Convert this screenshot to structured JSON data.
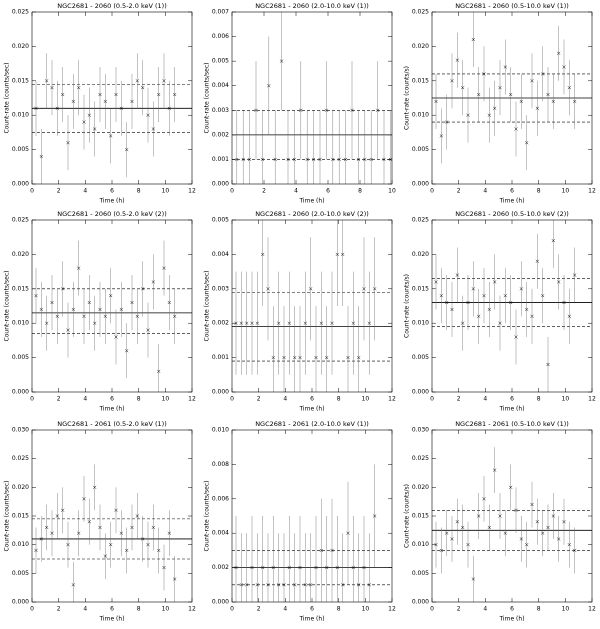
{
  "chart_data": [
    {
      "type": "errorbar",
      "title": "NGC2681 - 2060 (0.5-2.0 keV (1))",
      "xlabel": "Time (h)",
      "ylabel": "Count-rate (counts/sec)",
      "x": [
        0.3,
        0.7,
        1.1,
        1.5,
        1.9,
        2.3,
        2.7,
        3.1,
        3.5,
        3.9,
        4.3,
        4.7,
        5.1,
        5.5,
        5.9,
        6.3,
        6.7,
        7.1,
        7.5,
        7.9,
        8.3,
        8.7,
        9.1,
        9.5,
        9.9,
        10.3,
        10.7
      ],
      "values": [
        0.011,
        0.004,
        0.015,
        0.014,
        0.011,
        0.013,
        0.006,
        0.012,
        0.014,
        0.009,
        0.01,
        0.008,
        0.013,
        0.012,
        0.007,
        0.013,
        0.011,
        0.005,
        0.012,
        0.015,
        0.014,
        0.01,
        0.008,
        0.013,
        0.015,
        0.011,
        0.013
      ],
      "error": 0.004,
      "mean": 0.011,
      "band": [
        0.0075,
        0.0145
      ],
      "xlim": [
        0,
        12
      ],
      "xticks": [
        0,
        2,
        4,
        6,
        8,
        10,
        12
      ],
      "ylim": [
        0,
        0.025
      ],
      "yticks": [
        {
          "value": 0,
          "label": "0.000"
        },
        0.005,
        {
          "value": 0.01,
          "label": "0.010"
        },
        0.015,
        {
          "value": 0.02,
          "label": "0.020"
        },
        0.025
      ]
    },
    {
      "type": "errorbar",
      "title": "NGC2681 - 2060 (2.0-10.0 keV (1))",
      "xlabel": "Time (h)",
      "ylabel": "Count-rate (counts/sec)",
      "x": [
        0.3,
        0.7,
        1.1,
        1.5,
        1.9,
        2.3,
        2.7,
        3.1,
        3.5,
        3.9,
        4.3,
        4.7,
        5.1,
        5.5,
        5.9,
        6.3,
        6.7,
        7.1,
        7.5,
        7.9,
        8.3,
        8.7,
        9.1,
        9.5,
        9.9
      ],
      "values": [
        0.001,
        0.001,
        0.001,
        0.003,
        0.001,
        0.004,
        0.001,
        0.005,
        0.001,
        0.001,
        0.003,
        0.001,
        0.001,
        0.001,
        0.003,
        0.001,
        0.001,
        0.001,
        0.003,
        0.001,
        0.001,
        0.001,
        0.003,
        0.001,
        0.001
      ],
      "error": 0.002,
      "mean": 0.002,
      "band": [
        0.001,
        0.003
      ],
      "xlim": [
        0,
        10
      ],
      "xticks": [
        0,
        2,
        4,
        6,
        8,
        10
      ],
      "ylim": [
        0,
        0.007
      ],
      "yticks": [
        {
          "value": 0,
          "label": "0.000"
        },
        0.001,
        0.002,
        0.003,
        0.004,
        0.005,
        0.006,
        0.007
      ]
    },
    {
      "type": "errorbar",
      "title": "NGC2681 - 2060 (0.5-10.0 keV (1))",
      "xlabel": "Time (h)",
      "ylabel": "Count-rate (counts/s)",
      "x": [
        0.3,
        0.7,
        1.1,
        1.5,
        1.9,
        2.3,
        2.7,
        3.1,
        3.5,
        3.9,
        4.3,
        4.7,
        5.1,
        5.5,
        5.9,
        6.3,
        6.7,
        7.1,
        7.5,
        7.9,
        8.3,
        8.7,
        9.1,
        9.5,
        9.9,
        10.3,
        10.7
      ],
      "values": [
        0.012,
        0.007,
        0.009,
        0.015,
        0.018,
        0.014,
        0.01,
        0.021,
        0.013,
        0.016,
        0.01,
        0.011,
        0.014,
        0.017,
        0.013,
        0.008,
        0.012,
        0.006,
        0.015,
        0.011,
        0.016,
        0.013,
        0.012,
        0.019,
        0.017,
        0.014,
        0.012
      ],
      "error": 0.004,
      "mean": 0.0125,
      "band": [
        0.009,
        0.016
      ],
      "xlim": [
        0,
        12
      ],
      "xticks": [
        0,
        2,
        4,
        6,
        8,
        10,
        12
      ],
      "ylim": [
        0,
        0.025
      ],
      "yticks": [
        {
          "value": 0,
          "label": "0.000"
        },
        0.005,
        {
          "value": 0.01,
          "label": "0.010"
        },
        0.015,
        {
          "value": 0.02,
          "label": "0.020"
        },
        0.025
      ]
    },
    {
      "type": "errorbar",
      "title": "NGC2681 - 2060 (0.5-2.0 keV (2))",
      "xlabel": "Time (h)",
      "ylabel": "Count-rate (counts/sec)",
      "x": [
        0.3,
        0.7,
        1.1,
        1.5,
        1.9,
        2.3,
        2.7,
        3.1,
        3.5,
        3.9,
        4.3,
        4.7,
        5.1,
        5.5,
        5.9,
        6.3,
        6.7,
        7.1,
        7.5,
        7.9,
        8.3,
        8.7,
        9.1,
        9.5,
        9.9,
        10.3,
        10.7
      ],
      "values": [
        0.014,
        0.012,
        0.01,
        0.013,
        0.011,
        0.015,
        0.009,
        0.012,
        0.018,
        0.011,
        0.013,
        0.01,
        0.012,
        0.011,
        0.014,
        0.008,
        0.012,
        0.006,
        0.013,
        0.011,
        0.015,
        0.009,
        0.016,
        0.003,
        0.018,
        0.013,
        0.011
      ],
      "error": 0.004,
      "mean": 0.0115,
      "band": [
        0.0085,
        0.015
      ],
      "xlim": [
        0,
        12
      ],
      "xticks": [
        0,
        2,
        4,
        6,
        8,
        10,
        12
      ],
      "ylim": [
        0,
        0.025
      ],
      "yticks": [
        {
          "value": 0,
          "label": "0.000"
        },
        0.005,
        {
          "value": 0.01,
          "label": "0.010"
        },
        0.015,
        {
          "value": 0.02,
          "label": "0.020"
        },
        0.025
      ]
    },
    {
      "type": "errorbar",
      "title": "NGC2681 - 2060 (2.0-10.0 keV (2))",
      "xlabel": "Time (h)",
      "ylabel": "Count-rate (counts/sec)",
      "x": [
        0.3,
        0.7,
        1.1,
        1.5,
        1.9,
        2.3,
        2.7,
        3.1,
        3.5,
        3.9,
        4.3,
        4.7,
        5.1,
        5.5,
        5.9,
        6.3,
        6.7,
        7.1,
        7.5,
        7.9,
        8.3,
        8.7,
        9.1,
        9.5,
        9.9,
        10.3,
        10.7
      ],
      "values": [
        0.002,
        0.002,
        0.002,
        0.002,
        0.002,
        0.004,
        0.003,
        0.001,
        0.002,
        0.001,
        0.002,
        0.001,
        0.001,
        0.002,
        0.003,
        0.001,
        0.002,
        0.001,
        0.002,
        0.004,
        0.004,
        0.001,
        0.002,
        0.001,
        0.003,
        0.002,
        0.003
      ],
      "error": 0.0015,
      "mean": 0.0019,
      "band": [
        0.0009,
        0.0029
      ],
      "xlim": [
        0,
        12
      ],
      "xticks": [
        0,
        2,
        4,
        6,
        8,
        10,
        12
      ],
      "ylim": [
        0,
        0.005
      ],
      "yticks": [
        {
          "value": 0,
          "label": "0.000"
        },
        0.001,
        0.002,
        0.003,
        0.004,
        0.005
      ]
    },
    {
      "type": "errorbar",
      "title": "NGC2681 - 2060 (0.5-10.0 keV (2))",
      "xlabel": "Time (h)",
      "ylabel": "Count-rate (counts/s)",
      "x": [
        0.3,
        0.7,
        1.1,
        1.5,
        1.9,
        2.3,
        2.7,
        3.1,
        3.5,
        3.9,
        4.3,
        4.7,
        5.1,
        5.5,
        5.9,
        6.3,
        6.7,
        7.1,
        7.5,
        7.9,
        8.3,
        8.7,
        9.1,
        9.5,
        9.9,
        10.3,
        10.7
      ],
      "values": [
        0.016,
        0.014,
        0.013,
        0.012,
        0.017,
        0.01,
        0.013,
        0.015,
        0.011,
        0.014,
        0.012,
        0.016,
        0.01,
        0.014,
        0.013,
        0.008,
        0.015,
        0.012,
        0.011,
        0.019,
        0.014,
        0.004,
        0.022,
        0.016,
        0.013,
        0.011,
        0.017
      ],
      "error": 0.004,
      "mean": 0.013,
      "band": [
        0.0095,
        0.0165
      ],
      "xlim": [
        0,
        12
      ],
      "xticks": [
        0,
        2,
        4,
        6,
        8,
        10,
        12
      ],
      "ylim": [
        0,
        0.025
      ],
      "yticks": [
        {
          "value": 0,
          "label": "0.000"
        },
        0.005,
        {
          "value": 0.01,
          "label": "0.010"
        },
        0.015,
        {
          "value": 0.02,
          "label": "0.020"
        },
        0.025
      ]
    },
    {
      "type": "errorbar",
      "title": "NGC2681 - 2061 (0.5-2.0 keV (1))",
      "xlabel": "Time (h)",
      "ylabel": "Count-rate (counts/sec)",
      "x": [
        0.3,
        0.7,
        1.1,
        1.5,
        1.9,
        2.3,
        2.7,
        3.1,
        3.5,
        3.9,
        4.3,
        4.7,
        5.1,
        5.5,
        5.9,
        6.3,
        6.7,
        7.1,
        7.5,
        7.9,
        8.3,
        8.7,
        9.1,
        9.5,
        9.9,
        10.3,
        10.7
      ],
      "values": [
        0.009,
        0.011,
        0.013,
        0.012,
        0.015,
        0.016,
        0.01,
        0.003,
        0.012,
        0.018,
        0.014,
        0.02,
        0.013,
        0.008,
        0.01,
        0.016,
        0.012,
        0.009,
        0.013,
        0.015,
        0.011,
        0.01,
        0.013,
        0.009,
        0.006,
        0.012,
        0.004
      ],
      "error": 0.004,
      "mean": 0.011,
      "band": [
        0.0075,
        0.0145
      ],
      "xlim": [
        0,
        12
      ],
      "xticks": [
        0,
        2,
        4,
        6,
        8,
        10,
        12
      ],
      "ylim": [
        0,
        0.03
      ],
      "yticks": [
        {
          "value": 0,
          "label": "0.000"
        },
        0.005,
        {
          "value": 0.01,
          "label": "0.010"
        },
        0.015,
        {
          "value": 0.02,
          "label": "0.020"
        },
        0.025,
        {
          "value": 0.03,
          "label": "0.030"
        }
      ]
    },
    {
      "type": "errorbar",
      "title": "NGC2681 - 2061 (2.0-10.0 keV (1))",
      "xlabel": "Time (h)",
      "ylabel": "Count-rate (counts/sec)",
      "x": [
        0.3,
        0.7,
        1.1,
        1.5,
        1.9,
        2.3,
        2.7,
        3.1,
        3.5,
        3.9,
        4.3,
        4.7,
        5.1,
        5.5,
        5.9,
        6.3,
        6.7,
        7.1,
        7.5,
        7.9,
        8.3,
        8.7,
        9.1,
        9.5,
        9.9,
        10.3,
        10.7
      ],
      "values": [
        0.002,
        0.001,
        0.001,
        0.002,
        0.001,
        0.002,
        0.001,
        0.002,
        0.001,
        0.001,
        0.002,
        0.001,
        0.002,
        0.001,
        0.001,
        0.002,
        0.003,
        0.002,
        0.003,
        0.002,
        0.001,
        0.004,
        0.002,
        0.001,
        0.002,
        0.001,
        0.005
      ],
      "error": 0.003,
      "mean": 0.002,
      "band": [
        0.001,
        0.003
      ],
      "xlim": [
        0,
        12
      ],
      "xticks": [
        0,
        2,
        4,
        6,
        8,
        10,
        12
      ],
      "ylim": [
        0,
        0.01
      ],
      "yticks": [
        {
          "value": 0,
          "label": "0.000"
        },
        0.002,
        0.004,
        0.006,
        0.008,
        {
          "value": 0.01,
          "label": "0.010"
        }
      ]
    },
    {
      "type": "errorbar",
      "title": "NGC2681 - 2061 (0.5-10.0 keV (1))",
      "xlabel": "Time (h)",
      "ylabel": "Count-rate (counts/s)",
      "x": [
        0.3,
        0.7,
        1.1,
        1.5,
        1.9,
        2.3,
        2.7,
        3.1,
        3.5,
        3.9,
        4.3,
        4.7,
        5.1,
        5.5,
        5.9,
        6.3,
        6.7,
        7.1,
        7.5,
        7.9,
        8.3,
        8.7,
        9.1,
        9.5,
        9.9,
        10.3,
        10.7
      ],
      "values": [
        0.01,
        0.009,
        0.012,
        0.011,
        0.014,
        0.013,
        0.01,
        0.004,
        0.015,
        0.018,
        0.013,
        0.023,
        0.015,
        0.012,
        0.02,
        0.016,
        0.011,
        0.01,
        0.017,
        0.014,
        0.012,
        0.013,
        0.015,
        0.011,
        0.014,
        0.01,
        0.009
      ],
      "error": 0.004,
      "mean": 0.0125,
      "band": [
        0.009,
        0.016
      ],
      "xlim": [
        0,
        12
      ],
      "xticks": [
        0,
        2,
        4,
        6,
        8,
        10,
        12
      ],
      "ylim": [
        0,
        0.03
      ],
      "yticks": [
        {
          "value": 0,
          "label": "0.000"
        },
        0.005,
        {
          "value": 0.01,
          "label": "0.010"
        },
        0.015,
        {
          "value": 0.02,
          "label": "0.020"
        },
        0.025,
        {
          "value": 0.03,
          "label": "0.030"
        }
      ]
    }
  ]
}
